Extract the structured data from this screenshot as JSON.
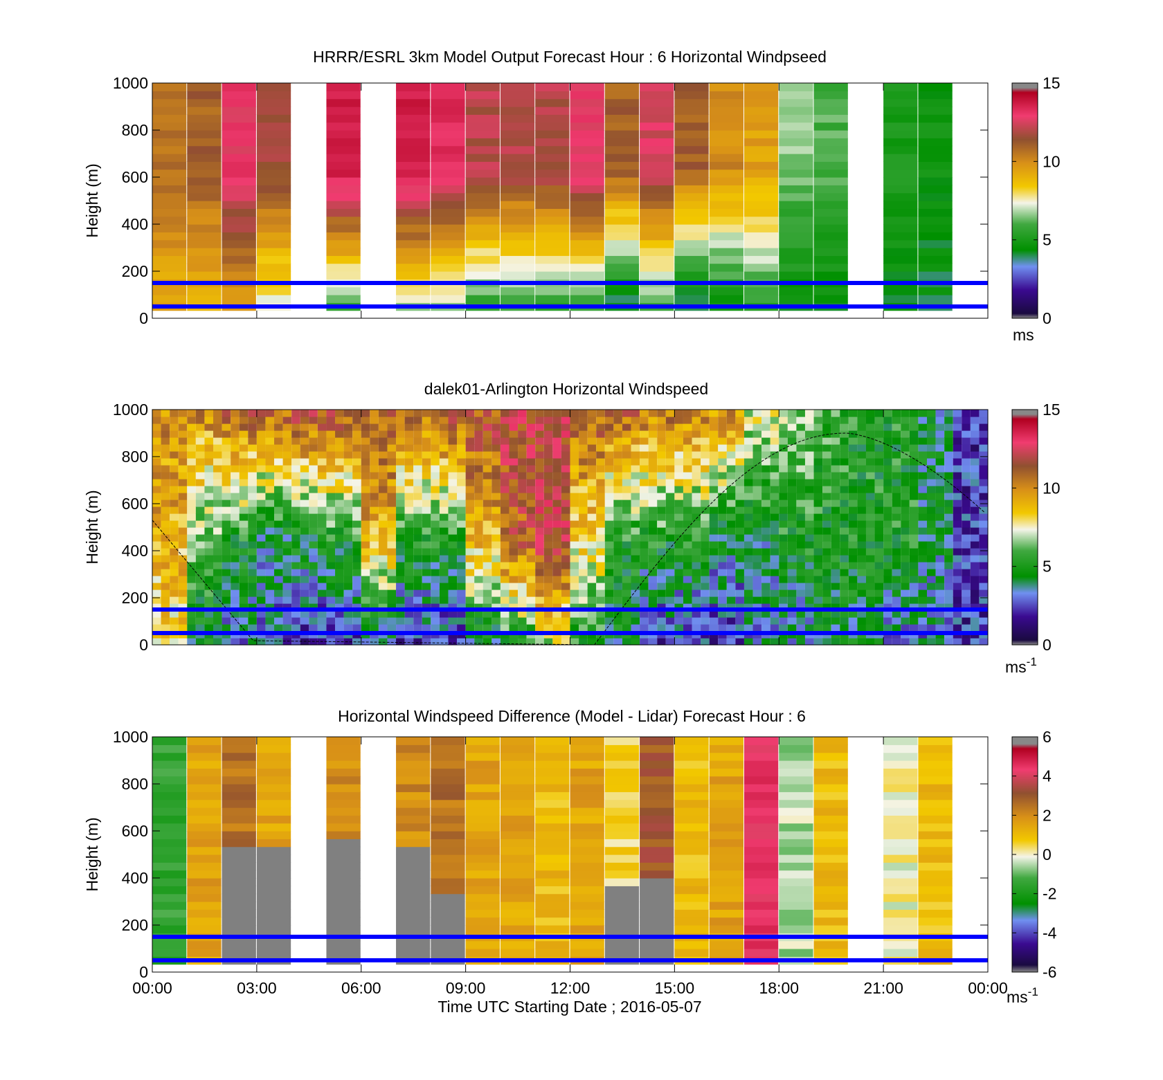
{
  "figure": {
    "xlabel": "Time UTC  Starting Date ; 2016-05-07",
    "x_tick_labels": [
      "00:00",
      "03:00",
      "06:00",
      "09:00",
      "12:00",
      "15:00",
      "18:00",
      "21:00",
      "00:00"
    ],
    "y_tick_labels": [
      "0",
      "200",
      "400",
      "600",
      "800",
      "1000"
    ]
  },
  "chart_data": [
    {
      "type": "heatmap",
      "title": "HRRR/ESRL 3km Model Output   Forecast Hour : 6 Horizontal Windpseed",
      "ylabel": "Height (m)",
      "xlim": [
        0,
        24
      ],
      "ylim": [
        0,
        1000
      ],
      "x_unit": "hours UTC",
      "colorbar": {
        "range": [
          0,
          15
        ],
        "ticks": [
          "0",
          "5",
          "10",
          "15"
        ],
        "unit": "ms"
      },
      "reference_lines_m": [
        50,
        150
      ],
      "reference_line_color": "#0000ff",
      "column_hours": [
        0,
        1,
        2,
        3,
        4,
        5,
        6,
        7,
        8,
        9,
        10,
        11,
        12,
        13,
        14,
        15,
        16,
        17,
        18,
        19,
        20,
        21,
        22,
        23
      ],
      "column_top_values": [
        10.5,
        11,
        13,
        11.5,
        null,
        14,
        null,
        14,
        13.5,
        12,
        12,
        12,
        13,
        11,
        12.5,
        11,
        10,
        9.5,
        6.5,
        6,
        null,
        5,
        4.5,
        null
      ],
      "column_bottom_values": [
        9,
        9,
        9,
        7,
        null,
        5,
        null,
        6,
        6,
        5,
        5,
        5,
        5,
        3,
        5,
        3,
        4,
        5,
        4,
        4,
        null,
        4,
        4,
        null
      ]
    },
    {
      "type": "heatmap",
      "title": "dalek01-Arlington  Horizontal Windspeed",
      "ylabel": "Height (m)",
      "xlim": [
        0,
        24
      ],
      "ylim": [
        0,
        1000
      ],
      "x_unit": "hours UTC",
      "colorbar": {
        "range": [
          0,
          15
        ],
        "ticks": [
          "0",
          "5",
          "10",
          "15"
        ],
        "unit": "ms",
        "unit_exponent": "-1"
      },
      "reference_lines_m": [
        50,
        150
      ],
      "reference_line_color": "#0000ff",
      "boundary_layer_curve": {
        "start_hour": 0,
        "start_height": 530,
        "min_hour_start": 3,
        "min_hour_end": 12.7,
        "peak_hour": 19.9,
        "peak_height": 900,
        "end_hour": 24,
        "end_height": 550
      },
      "column_hours": [
        0,
        1,
        2,
        3,
        4,
        5,
        6,
        7,
        8,
        9,
        10,
        11,
        12,
        13,
        14,
        15,
        16,
        17,
        18,
        19,
        20,
        21,
        22,
        23
      ],
      "column_top_values": [
        10,
        10,
        11,
        11,
        11.5,
        11.5,
        11,
        11,
        11.5,
        11.5,
        12,
        12,
        11,
        11,
        10.5,
        10.5,
        10,
        7.5,
        6.5,
        5.5,
        5,
        5,
        4,
        2
      ],
      "column_mid_values": [
        9,
        6,
        5,
        4,
        4.5,
        5,
        9,
        5,
        5,
        9,
        11,
        12,
        8,
        5,
        5,
        5,
        4,
        4,
        5,
        5,
        5,
        5,
        4,
        2
      ],
      "column_bottom_values": [
        8,
        4,
        3,
        2.5,
        2,
        2,
        3,
        2,
        2,
        4,
        5,
        7,
        5,
        4,
        2,
        2,
        2,
        3,
        3,
        4,
        4,
        3,
        3,
        2
      ]
    },
    {
      "type": "heatmap",
      "title": "Horizontal Windspeed Difference (Model - Lidar) Forecast Hour : 6",
      "ylabel": "Height (m)",
      "xlabel": "Time UTC  Starting Date ; 2016-05-07",
      "xlim": [
        0,
        24
      ],
      "ylim": [
        0,
        1000
      ],
      "x_unit": "hours UTC",
      "colorbar": {
        "range": [
          -6,
          6
        ],
        "ticks": [
          "-6",
          "-4",
          "-2",
          "0",
          "2",
          "4",
          "6"
        ],
        "unit": "ms",
        "unit_exponent": "-1"
      },
      "reference_lines_m": [
        50,
        150
      ],
      "reference_line_color": "#0000ff",
      "column_hours": [
        0,
        1,
        2,
        3,
        4,
        5,
        6,
        7,
        8,
        9,
        10,
        11,
        12,
        13,
        14,
        15,
        16,
        17,
        18,
        19,
        20,
        21,
        22,
        23
      ],
      "column_values": [
        -1.5,
        1.5,
        2.5,
        1.5,
        null,
        2,
        null,
        2,
        2.5,
        1.5,
        1.5,
        1,
        1.5,
        0.5,
        3,
        1,
        1.5,
        4.5,
        -0.5,
        1,
        null,
        0,
        1,
        null
      ],
      "missing_below_m": [
        null,
        null,
        520,
        510,
        null,
        560,
        null,
        510,
        310,
        null,
        null,
        null,
        null,
        340,
        380,
        null,
        null,
        null,
        null,
        null,
        null,
        null,
        null,
        null
      ]
    }
  ]
}
